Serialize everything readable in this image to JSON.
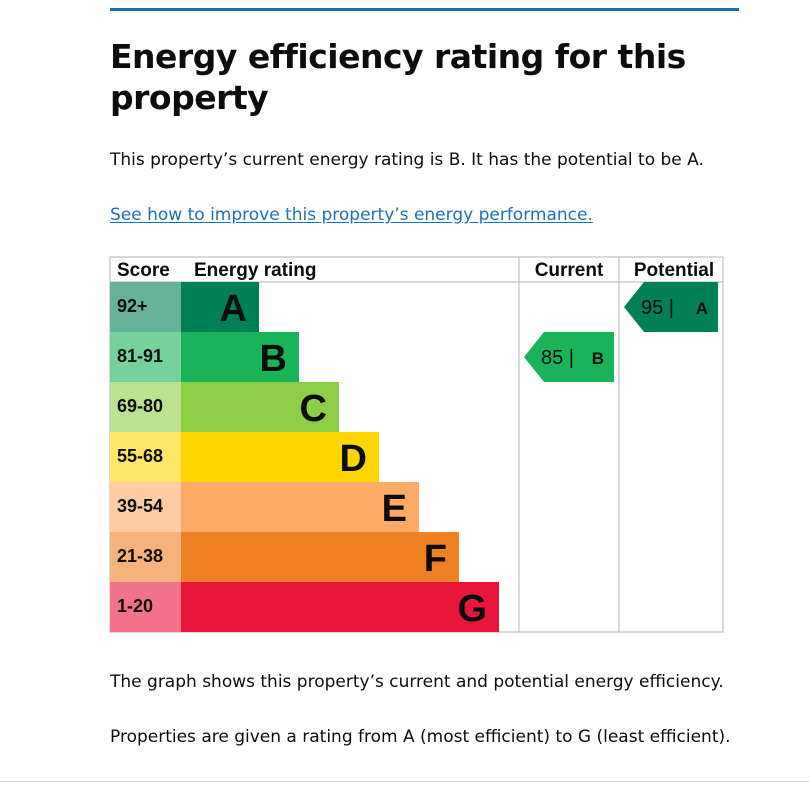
{
  "page": {
    "title": "Energy efficiency rating for this property",
    "summary": "This property’s current energy rating is B. It has the potential to be A.",
    "improve_link": "See how to improve this property’s energy performance.",
    "graph_note": "The graph shows this property’s current and potential energy efficiency.",
    "scale_note": "Properties are given a rating from A (most efficient) to G (least efficient)."
  },
  "table_headers": {
    "score": "Score",
    "rating": "Energy rating",
    "current": "Current",
    "potential": "Potential"
  },
  "colors": {
    "link": "#1d70b8",
    "rule": "#1d70b8"
  },
  "chart_data": {
    "type": "bar",
    "categories": [
      "A",
      "B",
      "C",
      "D",
      "E",
      "F",
      "G"
    ],
    "score_ranges": [
      "92+",
      "81-91",
      "69-80",
      "55-68",
      "39-54",
      "21-38",
      "1-20"
    ],
    "band_colors": [
      "#008054",
      "#19b459",
      "#8dce46",
      "#ffd500",
      "#fcaa65",
      "#ef8023",
      "#e9153b"
    ],
    "score_cell_colors": [
      "#66b298",
      "#75d29b",
      "#bbe290",
      "#ffe666",
      "#fdcca3",
      "#f5b37b",
      "#f27389"
    ],
    "letter_colors": [
      "#0b0c0c",
      "#0b0c0c",
      "#0b0c0c",
      "#0b0c0c",
      "#0b0c0c",
      "#0b0c0c",
      "#0b0c0c"
    ],
    "current": {
      "score": 85,
      "letter": "B"
    },
    "potential": {
      "score": 95,
      "letter": "A"
    }
  }
}
